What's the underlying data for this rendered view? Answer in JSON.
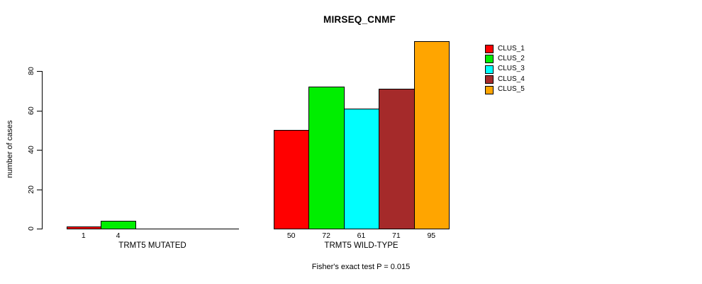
{
  "chart_data": {
    "type": "bar",
    "title": "MIRSEQ_CNMF",
    "ylabel": "number of cases",
    "ylim": [
      0,
      97
    ],
    "yticks": [
      0,
      20,
      40,
      60,
      80
    ],
    "grid": false,
    "legend_position": "right-inside",
    "legend": [
      {
        "name": "CLUS_1",
        "color": "#FF0000"
      },
      {
        "name": "CLUS_2",
        "color": "#00EE00"
      },
      {
        "name": "CLUS_3",
        "color": "#00FFFF"
      },
      {
        "name": "CLUS_4",
        "color": "#A52A2A"
      },
      {
        "name": "CLUS_5",
        "color": "#FFA500"
      }
    ],
    "groups": [
      {
        "label": "TRMT5 MUTATED",
        "values": [
          1,
          4,
          0,
          0,
          0
        ],
        "value_labels": [
          "1",
          "4",
          "",
          "",
          ""
        ]
      },
      {
        "label": "TRMT5 WILD-TYPE",
        "values": [
          50,
          72,
          61,
          71,
          95
        ],
        "value_labels": [
          "50",
          "72",
          "61",
          "71",
          "95"
        ]
      }
    ],
    "annotation": "Fisher's exact test P = 0.015"
  }
}
